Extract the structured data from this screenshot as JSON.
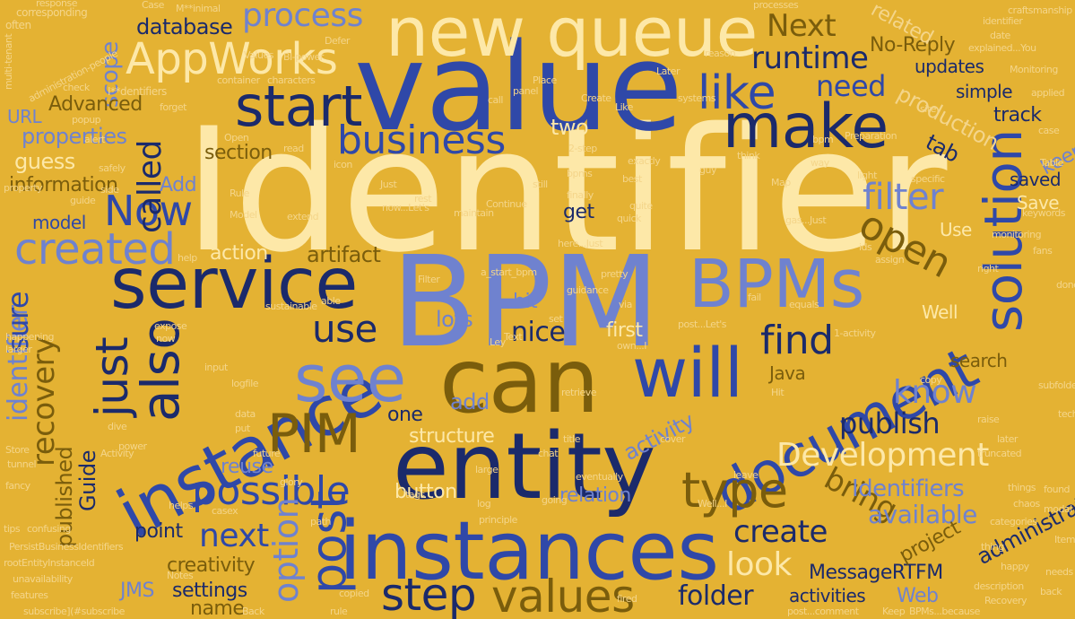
{
  "words": {
    "identifier": "Identifier",
    "value": "value",
    "bpm": "BPM",
    "new_queue": "new queue",
    "entity": "entity",
    "instances": "instances",
    "can": "can",
    "service": "service",
    "instance": "instance",
    "bpms": "BPMs",
    "document": "document",
    "see": "see",
    "will": "will",
    "make": "make",
    "start": "start",
    "solution": "solution",
    "appworks": "AppWorks",
    "pim": "PIM",
    "step": "step",
    "values": "values",
    "also": "also",
    "created": "created",
    "business": "business",
    "like": "like",
    "possible": "possible",
    "type": "type",
    "post": "post",
    "just": "just",
    "now": "Now",
    "process": "process",
    "runtime": "runtime",
    "next_cap": "Next",
    "need": "need",
    "use": "use",
    "find": "find",
    "open": "open",
    "filter": "filter",
    "development": "Development",
    "publish": "publish",
    "know": "know",
    "create": "create",
    "look": "look",
    "folder": "folder",
    "option": "option",
    "next": "next",
    "bring": "bring",
    "identifiers": "Identifiers",
    "available": "available",
    "recovery": "recovery",
    "identifier_low": "identifier",
    "sure": "sure",
    "called": "called",
    "database": "database",
    "scope": "scope",
    "properties": "properties",
    "advanced": "Advanced",
    "guess": "guess",
    "information": "information",
    "model": "model",
    "add_cap": "Add",
    "get": "get",
    "two": "two",
    "section": "section",
    "action": "action",
    "artifact": "artifact",
    "lots": "lots",
    "nice": "nice",
    "first": "first",
    "hit": "hit",
    "add": "add",
    "one": "one",
    "structure": "structure",
    "activity": "activity",
    "reuse": "reuse",
    "published": "published",
    "guide": "Guide",
    "button": "button",
    "relation": "relation",
    "point": "point",
    "creativity": "creativity",
    "settings": "settings",
    "jms": "JMS",
    "name": "name",
    "messagertfm": "MessageRTFM",
    "activities": "activities",
    "web": "Web",
    "project": "project",
    "administrator_people": "administrator-people",
    "production": "production",
    "track": "track",
    "simple": "simple",
    "updates": "updates",
    "no_reply": "No-Reply",
    "related": "related",
    "tab": "tab",
    "keep": "keep",
    "saved": "saved",
    "save": "Save",
    "use_cap": "Use",
    "well": "Well",
    "java": "Java",
    "search": "search",
    "url": "URL",
    "corresponding": "corresponding",
    "multi_tenant": "multi-tenant",
    "response": "response",
    "often": "often",
    "values_small": "Values",
    "bi_power": "BI-power",
    "defer": "Defer",
    "container": "container",
    "characters": "characters",
    "craftsmanship": "craftsmanship",
    "identifier_small": "identifier",
    "date": "date",
    "monitoring": "Monitoring",
    "applied": "applied",
    "explained": "explained...You",
    "rootentity": "rootEntityInstanceId",
    "persistbusiness": "PersistBusinessIdentifiers",
    "features": "features",
    "unavailability": "unavailability",
    "confusing": "confusing",
    "tips": "tips",
    "fancy": "fancy",
    "store": "Store",
    "tunnel": "tunnel",
    "larger": "larger",
    "happening": "happening",
    "property": "property",
    "subscribe": "subscribe](#subscribe",
    "copied": "copied",
    "rule": "rule",
    "post_comment": "post...comment",
    "bpms_because": "BPMs...because",
    "recovery_small": "Recovery",
    "needs": "needs",
    "description": "description",
    "back": "back",
    "happy": "happy",
    "thing": "thing",
    "found": "found",
    "chaos": "chaos",
    "categories": "categories",
    "modal": "modal",
    "itemid": "ItemId",
    "things": "things",
    "done": "done",
    "table": "Table",
    "fans": "fans",
    "case": "case",
    "subfolder": "subfolder",
    "technical": "technical",
    "later": "later",
    "raise": "raise",
    "truncated": "truncated",
    "copy": "copy",
    "logfile": "logfile",
    "expose": "expose",
    "input": "input",
    "data": "data",
    "put": "put",
    "dive": "dive",
    "power": "power",
    "glory": "glory",
    "future": "future",
    "tags": "tags",
    "path": "path",
    "casex": "casex",
    "helps": "helps",
    "principle": "principle",
    "log": "log",
    "chat": "chat",
    "title": "title",
    "cover": "cover",
    "eventually": "eventually",
    "going": "going",
    "fired": "fired",
    "well_ellipsis": "Well...I",
    "retrieve": "retrieve",
    "via": "via",
    "own": "own...I",
    "post_lets": "post...Let's",
    "fail": "fail",
    "equals": "equals",
    "one_activity": "1-activity",
    "hit_small": "Hit",
    "filter_small": "Filter",
    "able": "able",
    "sustainable": "sustainable",
    "now_small": "now",
    "help": "help",
    "pretty": "pretty",
    "guidance": "guidance",
    "set": "set",
    "text": "Text",
    "a_start_bpm": "a_start_bpm",
    "read": "read",
    "rule_cap": "Rule",
    "model_cap": "Model",
    "extend": "extend",
    "guide_small": "guide",
    "side": "side",
    "safely": "safely",
    "popup": "popup",
    "alert": "alert",
    "forget": "forget",
    "check": "check",
    "administration_people": "administration-people",
    "minimal": "M**inimal",
    "case_cap": "Case",
    "processes": "processes",
    "identifiers_cap": "I**dentifiers",
    "open_cap": "Open",
    "icon": "icon",
    "still": "still",
    "just_cap": "Just",
    "rest": "rest",
    "here_just": "here...Just",
    "continue": "Continue",
    "finally": "finally",
    "maintain": "maintain",
    "two_step": "2-step",
    "best": "best",
    "exactly": "exactly",
    "guy": "guy",
    "think": "think",
    "map": "Map",
    "gas_just": "gas...Just",
    "light": "light",
    "specific": "specific",
    "ids": "ids",
    "assign": "assign",
    "monitoring_small": "monitoring",
    "right": "right",
    "way": "way",
    "bpm_small": "bpm",
    "preparation": "Preparation",
    "systems": "systems",
    "later_cap": "Later",
    "reason": "reason",
    "site": "site",
    "panel": "panel",
    "place": "Place",
    "create_cap": "Create",
    "like_cap": "Like",
    "call": "call",
    "bpms_small": "bpms",
    "now_lets": "now...Let's",
    "quick": "quick",
    "quite": "quite",
    "keywords": "keywords",
    "activity_cap": "Activity",
    "back_cap": "Back",
    "notes": "Notes",
    "keep_cap": "Keep",
    "leave": "leave",
    "large": "large",
    "ley": "Ley"
  }
}
